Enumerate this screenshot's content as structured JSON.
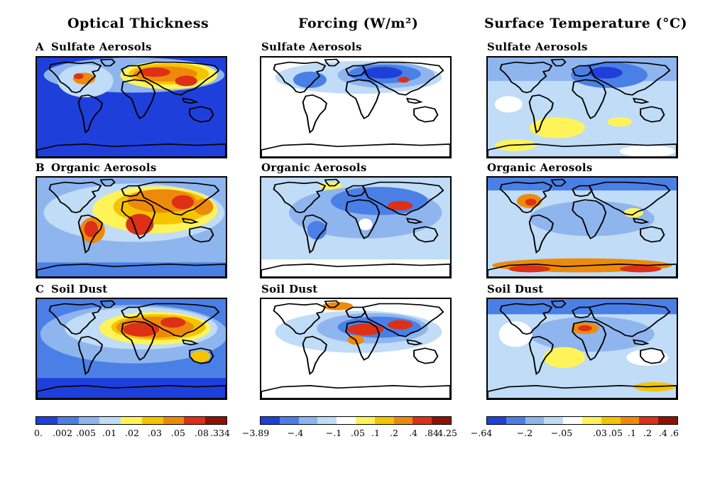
{
  "columns": [
    {
      "title": "Optical Thickness"
    },
    {
      "title": "Forcing (W/m²)"
    },
    {
      "title": "Surface Temperature (°C)"
    }
  ],
  "rows": [
    {
      "letter": "A",
      "labels": [
        "Sulfate Aerosols",
        "Sulfate Aerosols",
        "Sulfate Aerosols"
      ]
    },
    {
      "letter": "B",
      "labels": [
        "Organic Aerosols",
        "Organic Aerosols",
        "Organic Aerosols"
      ]
    },
    {
      "letter": "C",
      "labels": [
        "Soil Dust",
        "Soil Dust",
        "Soil Dust"
      ]
    }
  ],
  "colorbars": [
    {
      "colors": [
        "#1f3fdb",
        "#4a7fe6",
        "#8fb5ee",
        "#c0dcf6",
        "#fff35a",
        "#f5c400",
        "#ee8a0b",
        "#dd3016",
        "#8c1208"
      ],
      "ticks": [
        "0.",
        ".002",
        ".005",
        ".01",
        ".02",
        ".03",
        ".05",
        ".08",
        ".334"
      ]
    },
    {
      "colors": [
        "#1f3fdb",
        "#4a7fe6",
        "#8fb5ee",
        "#c0dcf6",
        "#ffffff",
        "#fff35a",
        "#f5c400",
        "#ee8a0b",
        "#dd3016",
        "#8c1208"
      ],
      "ticks": [
        "−3.89",
        "−.4",
        "−.1",
        ".05",
        ".1",
        ".2",
        ".4",
        ".84",
        "4.25"
      ]
    },
    {
      "colors": [
        "#1f3fdb",
        "#4a7fe6",
        "#8fb5ee",
        "#c0dcf6",
        "#ffffff",
        "#fff35a",
        "#f5c400",
        "#ee8a0b",
        "#dd3016",
        "#8c1208"
      ],
      "ticks": [
        "−.64",
        "−.2",
        "−.05",
        ".03",
        ".05",
        ".1",
        ".2",
        ".4",
        ".6"
      ]
    }
  ]
}
